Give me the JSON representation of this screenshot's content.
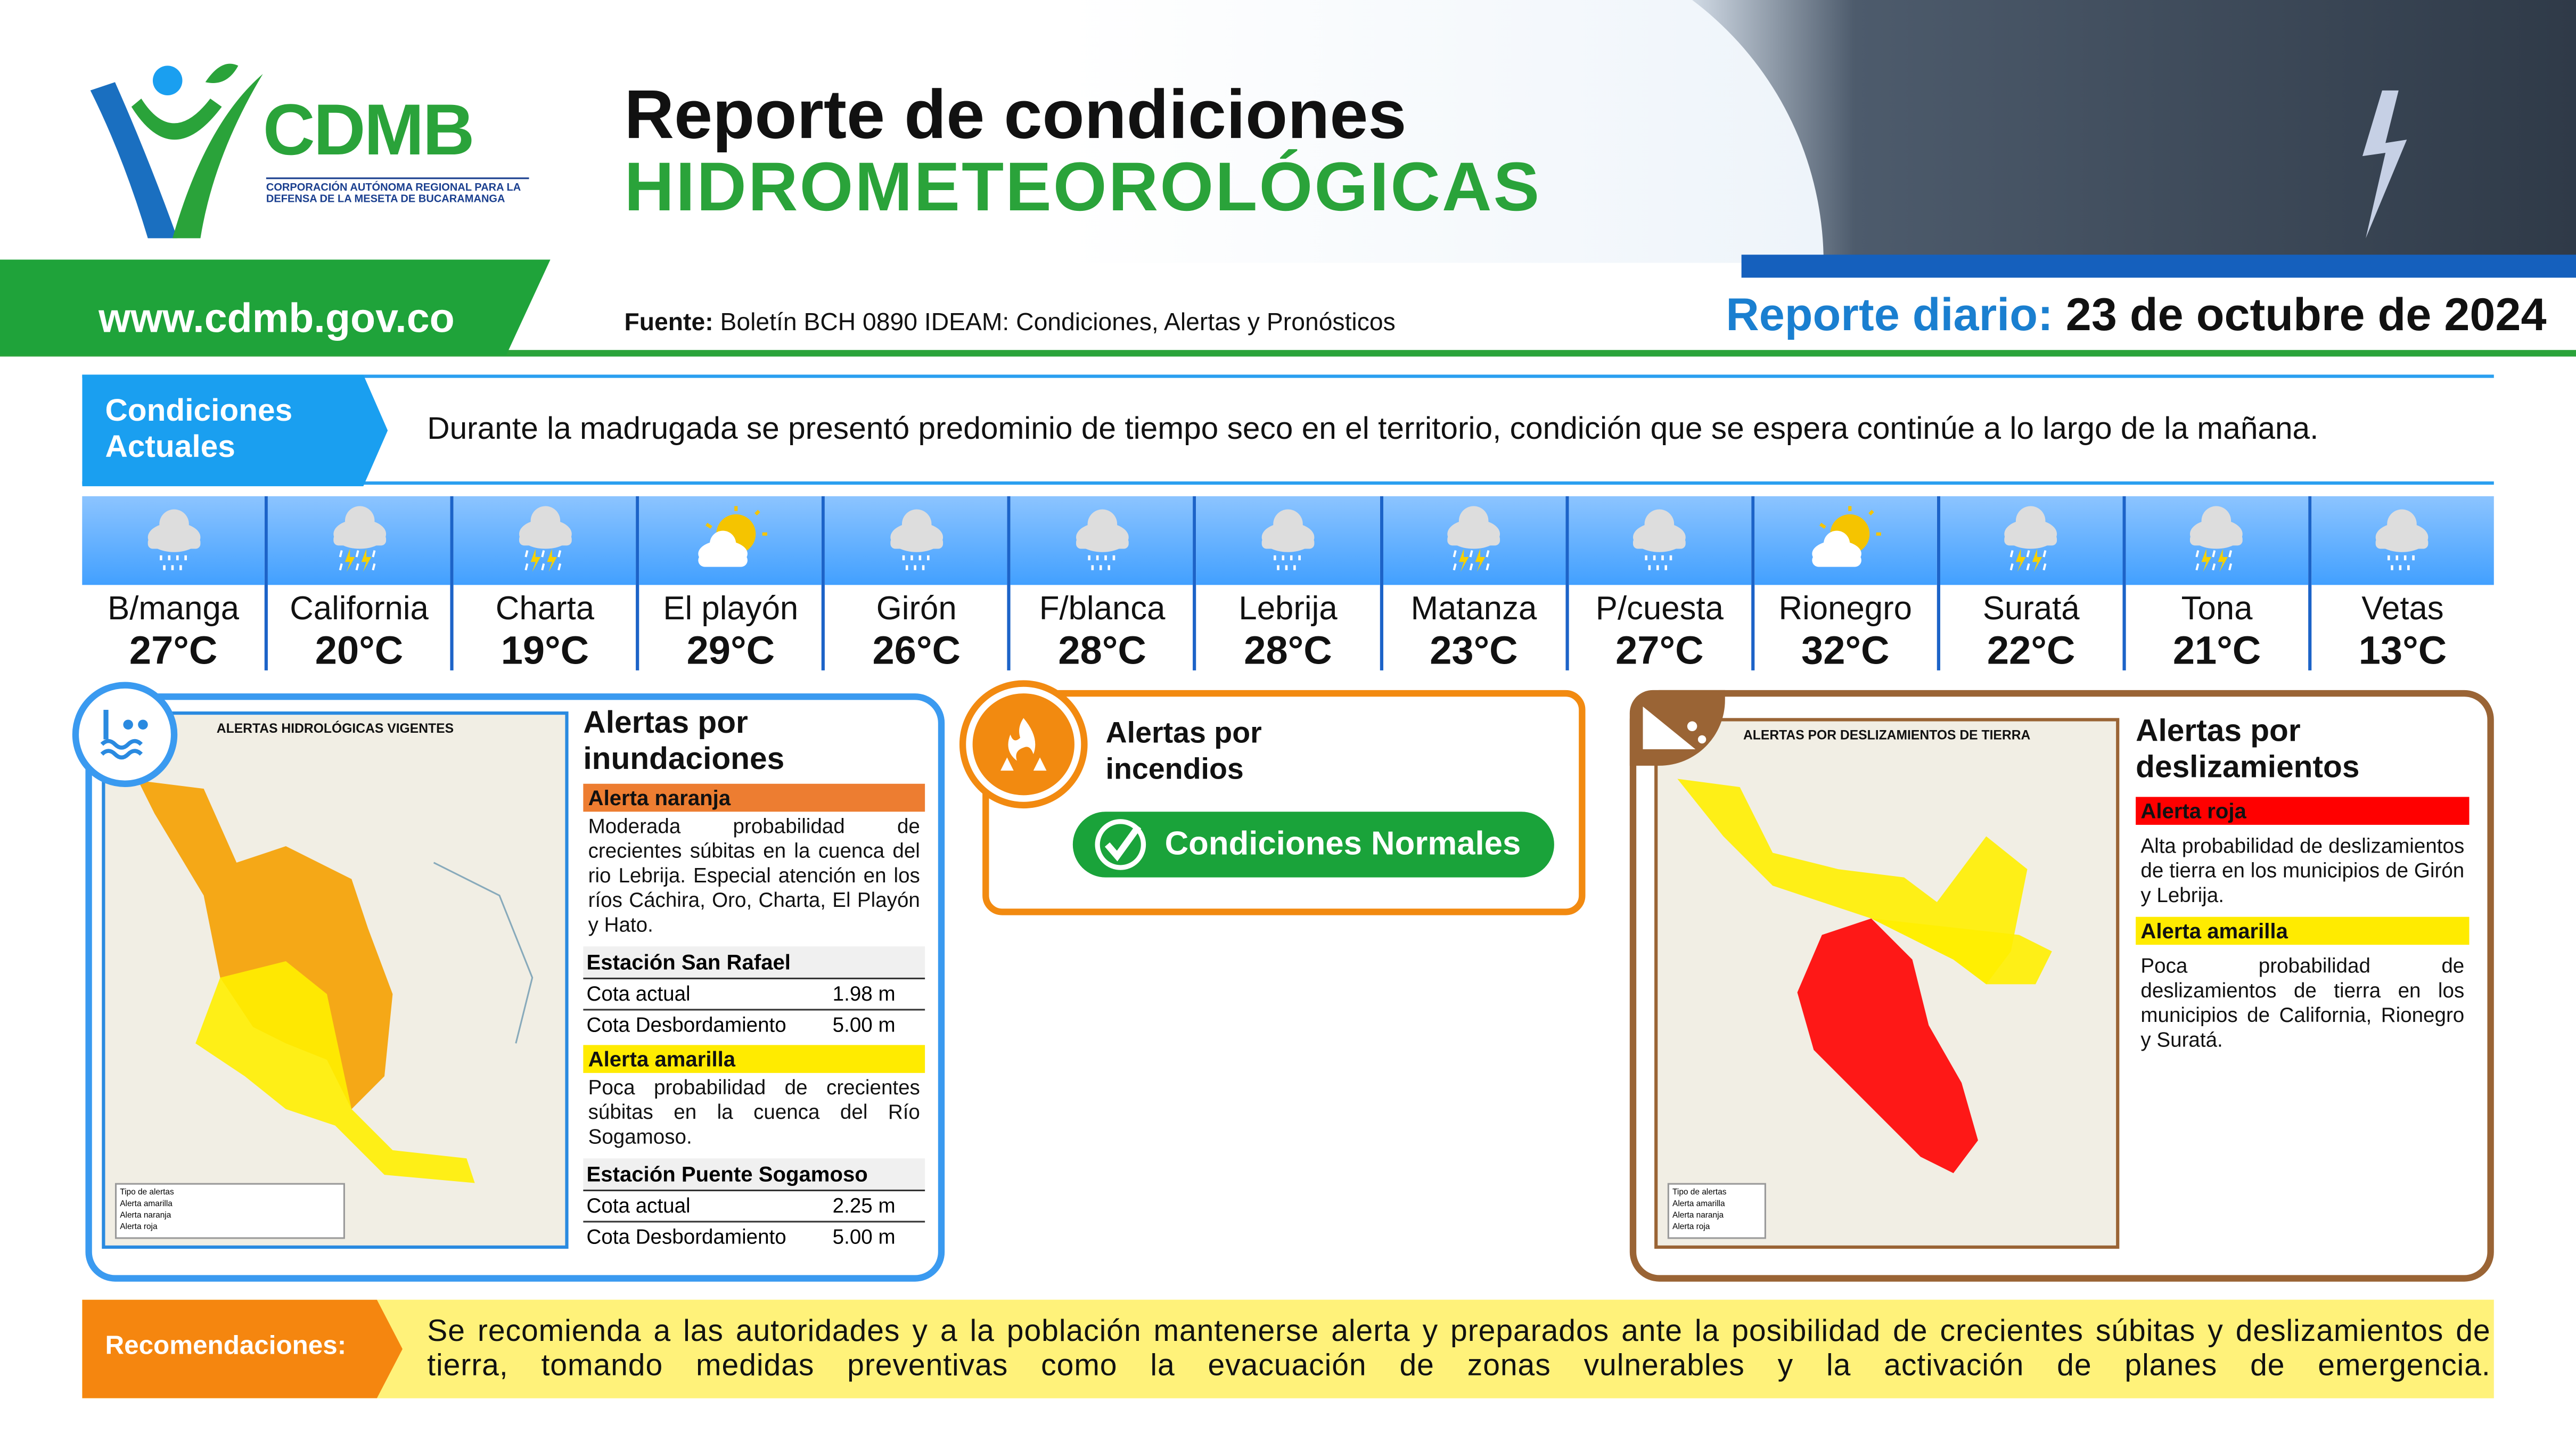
{
  "header": {
    "org_name": "CDMB",
    "org_full": "CORPORACIÓN AUTÓNOMA REGIONAL PARA LA DEFENSA DE LA MESETA DE BUCARAMANGA",
    "title_line1": "Reporte de condiciones",
    "title_line2": "HIDROMETEOROLÓGICAS"
  },
  "subheader": {
    "website": "www.cdmb.gov.co",
    "source_label": "Fuente:",
    "source_text": "Boletín BCH 0890 IDEAM: Condiciones, Alertas y Pronósticos",
    "report_label": "Reporte diario:",
    "report_date": "23 de octubre de 2024"
  },
  "conditions": {
    "label_line1": "Condiciones",
    "label_line2": "Actuales",
    "text": "Durante la madrugada se presentó predominio de tiempo seco en el territorio, condición que se espera continúe a lo largo de la mañana."
  },
  "weather": [
    {
      "name": "B/manga",
      "temp": "27°C",
      "icon": "rain"
    },
    {
      "name": "California",
      "temp": "20°C",
      "icon": "thunderstorm"
    },
    {
      "name": "Charta",
      "temp": "19°C",
      "icon": "thunderstorm"
    },
    {
      "name": "El playón",
      "temp": "29°C",
      "icon": "partly-sunny"
    },
    {
      "name": "Girón",
      "temp": "26°C",
      "icon": "rain"
    },
    {
      "name": "F/blanca",
      "temp": "28°C",
      "icon": "rain"
    },
    {
      "name": "Lebrija",
      "temp": "28°C",
      "icon": "rain"
    },
    {
      "name": "Matanza",
      "temp": "23°C",
      "icon": "thunderstorm"
    },
    {
      "name": "P/cuesta",
      "temp": "27°C",
      "icon": "rain"
    },
    {
      "name": "Rionegro",
      "temp": "32°C",
      "icon": "partly-sunny"
    },
    {
      "name": "Suratá",
      "temp": "22°C",
      "icon": "thunderstorm"
    },
    {
      "name": "Tona",
      "temp": "21°C",
      "icon": "thunderstorm"
    },
    {
      "name": "Vetas",
      "temp": "13°C",
      "icon": "rain"
    }
  ],
  "flood": {
    "title": "Alertas por inundaciones",
    "map_title": "ALERTAS HIDROLÓGICAS VIGENTES",
    "map_legend": [
      "Tipo de alertas",
      "Alerta amarilla",
      "Alerta naranja",
      "Alerta roja"
    ],
    "alert1": {
      "label": "Alerta naranja",
      "color": "#ed7d31",
      "text": "Moderada probabilidad de crecientes súbitas en la cuenca del rio Lebrija. Especial atención en los ríos Cáchira, Oro, Charta, El Playón y Hato."
    },
    "station1": {
      "name": "Estación San Rafael",
      "rows": [
        {
          "label": "Cota actual",
          "value": "1.98 m"
        },
        {
          "label": "Cota Desbordamiento",
          "value": "5.00 m"
        }
      ]
    },
    "alert2": {
      "label": "Alerta amarilla",
      "color": "#ffeb00",
      "text": "Poca probabilidad de crecientes súbitas en la cuenca del Río Sogamoso."
    },
    "station2": {
      "name": "Estación Puente Sogamoso",
      "rows": [
        {
          "label": "Cota actual",
          "value": "2.25 m"
        },
        {
          "label": "Cota Desbordamiento",
          "value": "5.00 m"
        }
      ]
    }
  },
  "fire": {
    "title": "Alertas por incendios",
    "status": "Condiciones Normales"
  },
  "landslide": {
    "title": "Alertas por deslizamientos",
    "map_title": "ALERTAS POR DESLIZAMIENTOS DE TIERRA",
    "map_legend": [
      "Tipo de alertas",
      "Alerta amarilla",
      "Alerta naranja",
      "Alerta roja"
    ],
    "alert1": {
      "label": "Alerta roja",
      "color": "#ff0000",
      "text": "Alta probabilidad de deslizamientos de tierra en los municipios de Girón y Lebrija."
    },
    "alert2": {
      "label": "Alerta amarilla",
      "color": "#ffeb00",
      "text": "Poca probabilidad de deslizamientos de tierra en los municipios de California, Rionegro y Suratá."
    }
  },
  "recommendations": {
    "label": "Recomendaciones:",
    "text": "Se recomienda a las autoridades y a la población mantenerse alerta y preparados ante la posibilidad de crecientes súbitas y deslizamientos de tierra, tomando medidas preventivas como la evacuación de zonas vulnerables y la activación de planes de emergencia."
  },
  "colors": {
    "green": "#2aa33a",
    "blue": "#1a9ff0",
    "orange": "#f28a10",
    "brown": "#9a6435"
  }
}
